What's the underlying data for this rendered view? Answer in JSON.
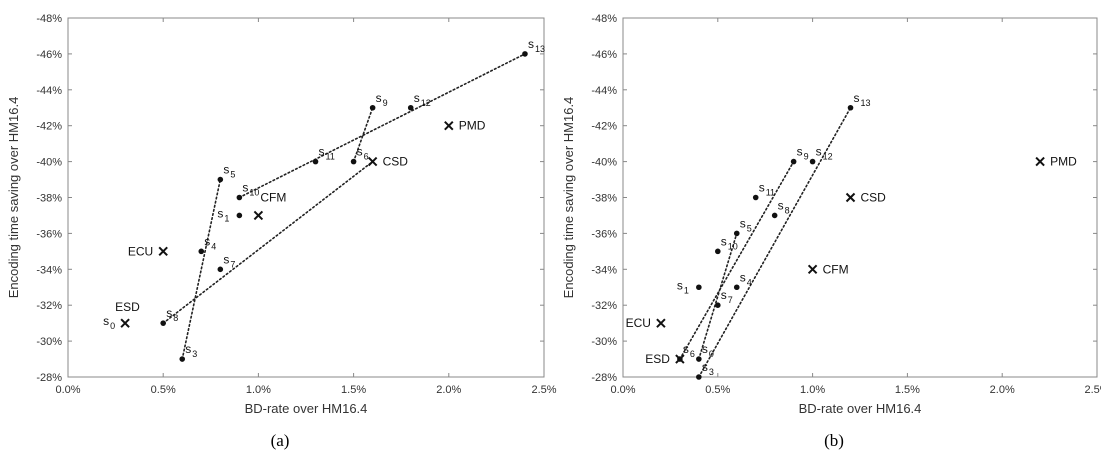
{
  "figure": {
    "captions": [
      "(a)",
      "(b)"
    ]
  },
  "chart_data": [
    {
      "type": "scatter",
      "caption": "(a)",
      "xlabel": "BD-rate over HM16.4",
      "ylabel": "Encoding time saving over HM16.4",
      "xlim": [
        0,
        2.5
      ],
      "ylim": [
        -28,
        -48
      ],
      "x_ticks": [
        "0.0%",
        "0.5%",
        "1.0%",
        "1.5%",
        "2.0%",
        "2.5%"
      ],
      "y_ticks": [
        "-28%",
        "-30%",
        "-32%",
        "-34%",
        "-36%",
        "-38%",
        "-40%",
        "-42%",
        "-44%",
        "-46%",
        "-48%"
      ],
      "points": [
        {
          "label": "s",
          "sub": "0",
          "x": 0.3,
          "y": -31,
          "marker": "x",
          "lp": "left-sub"
        },
        {
          "label": "s",
          "sub": "1",
          "x": 0.9,
          "y": -37,
          "marker": "dot",
          "lp": "left-sub"
        },
        {
          "label": "s",
          "sub": "3",
          "x": 0.6,
          "y": -29,
          "marker": "dot",
          "lp": "right-up"
        },
        {
          "label": "s",
          "sub": "4",
          "x": 0.7,
          "y": -35,
          "marker": "dot",
          "lp": "right-up"
        },
        {
          "label": "s",
          "sub": "5",
          "x": 0.8,
          "y": -39,
          "marker": "dot",
          "lp": "right-up"
        },
        {
          "label": "s",
          "sub": "6",
          "x": 1.5,
          "y": -40,
          "marker": "dot",
          "lp": "right-up"
        },
        {
          "label": "s",
          "sub": "7",
          "x": 0.8,
          "y": -34,
          "marker": "dot",
          "lp": "right-up"
        },
        {
          "label": "s",
          "sub": "8",
          "x": 0.5,
          "y": -31,
          "marker": "dot",
          "lp": "right-up"
        },
        {
          "label": "s",
          "sub": "9",
          "x": 1.6,
          "y": -43,
          "marker": "dot",
          "lp": "right-up"
        },
        {
          "label": "s",
          "sub": "10",
          "x": 0.9,
          "y": -38,
          "marker": "dot",
          "lp": "right-up"
        },
        {
          "label": "s",
          "sub": "11",
          "x": 1.3,
          "y": -40,
          "marker": "dot",
          "lp": "right-up"
        },
        {
          "label": "s",
          "sub": "12",
          "x": 1.8,
          "y": -43,
          "marker": "dot",
          "lp": "right-up"
        },
        {
          "label": "s",
          "sub": "13",
          "x": 2.4,
          "y": -46,
          "marker": "dot",
          "lp": "right-up"
        },
        {
          "label": "ECU",
          "x": 0.5,
          "y": -35,
          "marker": "x",
          "lp": "left"
        },
        {
          "label": "ESD",
          "x": 0.3,
          "y": -31,
          "marker": "none",
          "lp": "above-left"
        },
        {
          "label": "CFM",
          "x": 1.0,
          "y": -37,
          "marker": "x",
          "lp": "above"
        },
        {
          "label": "CSD",
          "x": 1.6,
          "y": -40,
          "marker": "x",
          "lp": "right"
        },
        {
          "label": "PMD",
          "x": 2.0,
          "y": -42,
          "marker": "x",
          "lp": "right"
        }
      ],
      "trend_lines": [
        [
          [
            0.5,
            -31
          ],
          [
            1.6,
            -40
          ]
        ],
        [
          [
            0.6,
            -29
          ],
          [
            0.8,
            -39
          ]
        ],
        [
          [
            0.9,
            -38
          ],
          [
            2.4,
            -46
          ]
        ],
        [
          [
            1.5,
            -40
          ],
          [
            1.6,
            -43
          ]
        ]
      ],
      "grid": false
    },
    {
      "type": "scatter",
      "caption": "(b)",
      "xlabel": "BD-rate over HM16.4",
      "ylabel": "Encoding time saving over HM16.4",
      "xlim": [
        0,
        2.5
      ],
      "ylim": [
        -28,
        -48
      ],
      "x_ticks": [
        "0.0%",
        "0.5%",
        "1.0%",
        "1.5%",
        "2.0%",
        "2.5%"
      ],
      "y_ticks": [
        "-28%",
        "-30%",
        "-32%",
        "-34%",
        "-36%",
        "-38%",
        "-40%",
        "-42%",
        "-44%",
        "-46%",
        "-48%"
      ],
      "points": [
        {
          "label": "s",
          "sub": "0",
          "x": 0.4,
          "y": -29,
          "marker": "dot",
          "lp": "right-up"
        },
        {
          "label": "s",
          "sub": "1",
          "x": 0.4,
          "y": -33,
          "marker": "dot",
          "lp": "left-sub"
        },
        {
          "label": "s",
          "sub": "3",
          "x": 0.4,
          "y": -28,
          "marker": "dot",
          "lp": "right-up"
        },
        {
          "label": "s",
          "sub": "4",
          "x": 0.6,
          "y": -33,
          "marker": "dot",
          "lp": "right-up"
        },
        {
          "label": "s",
          "sub": "5",
          "x": 0.6,
          "y": -36,
          "marker": "dot",
          "lp": "right-up"
        },
        {
          "label": "s",
          "sub": "6",
          "x": 0.3,
          "y": -29,
          "marker": "dot",
          "lp": "right-up"
        },
        {
          "label": "s",
          "sub": "7",
          "x": 0.5,
          "y": -32,
          "marker": "dot",
          "lp": "right-up"
        },
        {
          "label": "s",
          "sub": "8",
          "x": 0.8,
          "y": -37,
          "marker": "dot",
          "lp": "right-up"
        },
        {
          "label": "s",
          "sub": "9",
          "x": 0.9,
          "y": -40,
          "marker": "dot",
          "lp": "right-up"
        },
        {
          "label": "s",
          "sub": "10",
          "x": 0.5,
          "y": -35,
          "marker": "dot",
          "lp": "right-up"
        },
        {
          "label": "s",
          "sub": "11",
          "x": 0.7,
          "y": -38,
          "marker": "dot",
          "lp": "right-up"
        },
        {
          "label": "s",
          "sub": "12",
          "x": 1.0,
          "y": -40,
          "marker": "dot",
          "lp": "right-up"
        },
        {
          "label": "s",
          "sub": "13",
          "x": 1.2,
          "y": -43,
          "marker": "dot",
          "lp": "right-up"
        },
        {
          "label": "ECU",
          "x": 0.2,
          "y": -31,
          "marker": "x",
          "lp": "left"
        },
        {
          "label": "ESD",
          "x": 0.3,
          "y": -29,
          "marker": "x",
          "lp": "left"
        },
        {
          "label": "CFM",
          "x": 1.0,
          "y": -34,
          "marker": "x",
          "lp": "right"
        },
        {
          "label": "CSD",
          "x": 1.2,
          "y": -38,
          "marker": "x",
          "lp": "right"
        },
        {
          "label": "PMD",
          "x": 2.2,
          "y": -40,
          "marker": "x",
          "lp": "right"
        }
      ],
      "trend_lines": [
        [
          [
            0.3,
            -29
          ],
          [
            0.9,
            -40
          ]
        ],
        [
          [
            0.4,
            -28
          ],
          [
            1.2,
            -43
          ]
        ],
        [
          [
            0.4,
            -29
          ],
          [
            0.6,
            -36
          ]
        ]
      ],
      "grid": false
    }
  ]
}
